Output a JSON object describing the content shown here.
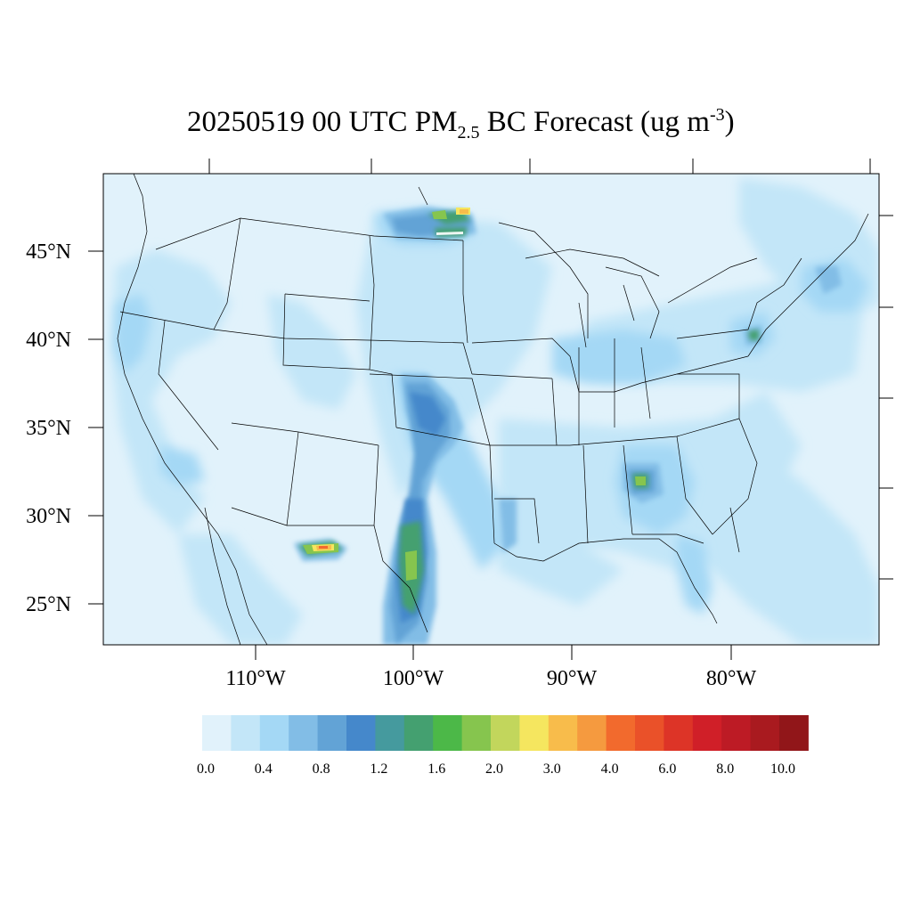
{
  "title": {
    "date": "20250519",
    "time": "00 UTC",
    "species": "PM",
    "subscript": "2.5",
    "middle": "BC Forecast (ug m",
    "superscript": "-3",
    "end": ")"
  },
  "map": {
    "lat_labels": [
      "45°N",
      "40°N",
      "35°N",
      "30°N",
      "25°N"
    ],
    "lon_labels": [
      "110°W",
      "100°W",
      "90°W",
      "80°W"
    ],
    "background_color": "#e1f2fb",
    "land_outline_color": "#000000"
  },
  "colorbar": {
    "colors": [
      "#e1f2fb",
      "#c3e6f8",
      "#a4d8f5",
      "#82bde6",
      "#62a3d6",
      "#4588cb",
      "#459a9e",
      "#44a070",
      "#4cb848",
      "#86c54e",
      "#c2d65c",
      "#f5e65f",
      "#f8bc4b",
      "#f59a3f",
      "#f26a2d",
      "#ea5129",
      "#dd3427",
      "#d01f28",
      "#bd1b25",
      "#a91a1f",
      "#911619"
    ],
    "tick_labels": [
      "0.0",
      "0.4",
      "0.8",
      "1.2",
      "1.6",
      "2.0",
      "3.0",
      "4.0",
      "6.0",
      "8.0",
      "10.0"
    ]
  }
}
